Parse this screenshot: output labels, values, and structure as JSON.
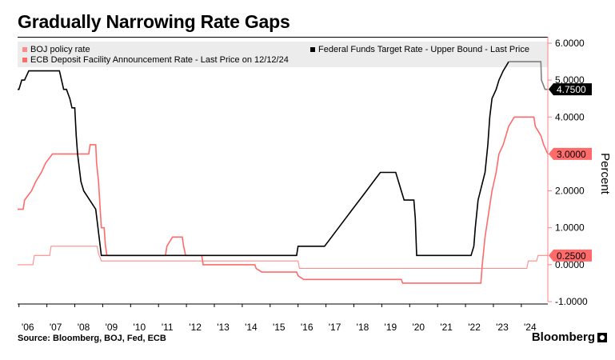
{
  "page": {
    "title": "Gradually Narrowing Rate Gaps",
    "source": "Source: Bloomberg, BOJ, Fed, ECB",
    "brand": "Bloomberg"
  },
  "chart_data": {
    "type": "line",
    "title": "Gradually Narrowing Rate Gaps",
    "ylabel": "Percent",
    "ylim": [
      -1.0,
      6.0
    ],
    "y_ticks": [
      "6.0000",
      "5.0000",
      "4.0000",
      "3.0000",
      "2.0000",
      "1.0000",
      "0.0000",
      "-1.0000"
    ],
    "y_tick_values": [
      6,
      5,
      4,
      3,
      2,
      1,
      0,
      -1
    ],
    "x_tick_labels": [
      "'06",
      "'07",
      "'08",
      "'09",
      "'10",
      "'11",
      "'12",
      "'13",
      "'14",
      "'15",
      "'16",
      "'17",
      "'18",
      "'19",
      "'20",
      "'21",
      "'22",
      "'23",
      "'24"
    ],
    "x_tick_years": [
      2006,
      2007,
      2008,
      2009,
      2010,
      2011,
      2012,
      2013,
      2014,
      2015,
      2016,
      2017,
      2018,
      2019,
      2020,
      2021,
      2022,
      2023,
      2024
    ],
    "xlim": [
      2005.95,
      2024.95
    ],
    "legend": {
      "boj": "BOJ policy rate",
      "ecb": "ECB Deposit Facility Announcement Rate - Last Price on 12/12/24",
      "fed": "Federal Funds Target Rate - Upper Bound - Last Price"
    },
    "last_labels": [
      {
        "series": "fed",
        "text": "4.7500",
        "value": 4.75
      },
      {
        "series": "ecb",
        "text": "3.0000",
        "value": 3.0
      },
      {
        "series": "boj",
        "text": "0.2500",
        "value": 0.25
      }
    ],
    "colors": {
      "fed": "#000000",
      "fed_recent": "#7f7f7f",
      "ecb": "#ff6b6b",
      "boj": "#ff8c8c",
      "axis_right": "#ff8080",
      "label_fed_bg": "#000000",
      "label_ecb_bg": "#ff6b6b",
      "label_boj_bg": "#ff6b6b"
    },
    "series": [
      {
        "name": "fed",
        "values": [
          [
            2005.95,
            4.75
          ],
          [
            2006.0,
            4.75
          ],
          [
            2006.1,
            5.0
          ],
          [
            2006.2,
            5.0
          ],
          [
            2006.35,
            5.25
          ],
          [
            2007.45,
            5.25
          ],
          [
            2007.6,
            4.75
          ],
          [
            2007.7,
            4.75
          ],
          [
            2007.82,
            4.5
          ],
          [
            2007.9,
            4.25
          ],
          [
            2008.0,
            4.25
          ],
          [
            2008.05,
            3.5
          ],
          [
            2008.1,
            3.0
          ],
          [
            2008.22,
            2.25
          ],
          [
            2008.32,
            2.0
          ],
          [
            2008.75,
            1.5
          ],
          [
            2008.83,
            1.0
          ],
          [
            2008.95,
            0.25
          ],
          [
            2015.95,
            0.25
          ],
          [
            2016.0,
            0.5
          ],
          [
            2016.95,
            0.5
          ],
          [
            2017.2,
            0.75
          ],
          [
            2017.45,
            1.0
          ],
          [
            2017.7,
            1.25
          ],
          [
            2017.95,
            1.5
          ],
          [
            2018.2,
            1.75
          ],
          [
            2018.45,
            2.0
          ],
          [
            2018.7,
            2.25
          ],
          [
            2018.95,
            2.5
          ],
          [
            2019.5,
            2.5
          ],
          [
            2019.6,
            2.25
          ],
          [
            2019.7,
            2.0
          ],
          [
            2019.8,
            1.75
          ],
          [
            2020.15,
            1.75
          ],
          [
            2020.2,
            1.25
          ],
          [
            2020.25,
            0.25
          ],
          [
            2022.2,
            0.25
          ],
          [
            2022.3,
            0.5
          ],
          [
            2022.35,
            1.0
          ],
          [
            2022.45,
            1.75
          ],
          [
            2022.7,
            2.5
          ],
          [
            2022.8,
            3.25
          ],
          [
            2022.87,
            4.0
          ],
          [
            2022.95,
            4.5
          ],
          [
            2023.1,
            4.75
          ],
          [
            2023.2,
            5.0
          ],
          [
            2023.35,
            5.25
          ],
          [
            2023.55,
            5.5
          ]
        ]
      },
      {
        "name": "fed_recent",
        "values": [
          [
            2023.55,
            5.5
          ],
          [
            2024.7,
            5.5
          ],
          [
            2024.72,
            5.0
          ],
          [
            2024.85,
            4.75
          ],
          [
            2024.95,
            4.75
          ]
        ]
      },
      {
        "name": "ecb",
        "values": [
          [
            2005.95,
            1.5
          ],
          [
            2006.15,
            1.5
          ],
          [
            2006.2,
            1.75
          ],
          [
            2006.45,
            2.0
          ],
          [
            2006.6,
            2.25
          ],
          [
            2006.8,
            2.5
          ],
          [
            2006.95,
            2.75
          ],
          [
            2007.2,
            3.0
          ],
          [
            2008.5,
            3.0
          ],
          [
            2008.55,
            3.25
          ],
          [
            2008.75,
            3.25
          ],
          [
            2008.78,
            2.75
          ],
          [
            2008.85,
            2.25
          ],
          [
            2008.95,
            1.0
          ],
          [
            2009.05,
            1.0
          ],
          [
            2009.1,
            0.5
          ],
          [
            2009.15,
            0.25
          ],
          [
            2011.25,
            0.25
          ],
          [
            2011.3,
            0.5
          ],
          [
            2011.5,
            0.75
          ],
          [
            2011.85,
            0.75
          ],
          [
            2011.9,
            0.5
          ],
          [
            2011.97,
            0.25
          ],
          [
            2012.55,
            0.25
          ],
          [
            2012.6,
            0.0
          ],
          [
            2014.45,
            0.0
          ],
          [
            2014.5,
            -0.1
          ],
          [
            2014.7,
            -0.2
          ],
          [
            2015.95,
            -0.2
          ],
          [
            2016.0,
            -0.3
          ],
          [
            2016.2,
            -0.4
          ],
          [
            2019.7,
            -0.4
          ],
          [
            2019.75,
            -0.5
          ],
          [
            2022.55,
            -0.5
          ],
          [
            2022.6,
            0.0
          ],
          [
            2022.7,
            0.75
          ],
          [
            2022.85,
            1.5
          ],
          [
            2022.95,
            2.0
          ],
          [
            2023.1,
            2.5
          ],
          [
            2023.2,
            3.0
          ],
          [
            2023.35,
            3.25
          ],
          [
            2023.45,
            3.5
          ],
          [
            2023.55,
            3.75
          ],
          [
            2023.75,
            4.0
          ],
          [
            2024.45,
            4.0
          ],
          [
            2024.5,
            3.75
          ],
          [
            2024.7,
            3.5
          ],
          [
            2024.8,
            3.25
          ],
          [
            2024.95,
            3.0
          ]
        ]
      },
      {
        "name": "boj",
        "values": [
          [
            2005.95,
            0.0
          ],
          [
            2006.5,
            0.0
          ],
          [
            2006.55,
            0.25
          ],
          [
            2007.1,
            0.25
          ],
          [
            2007.15,
            0.5
          ],
          [
            2008.8,
            0.5
          ],
          [
            2008.85,
            0.3
          ],
          [
            2008.95,
            0.1
          ],
          [
            2016.0,
            0.1
          ],
          [
            2016.05,
            -0.1
          ],
          [
            2024.2,
            -0.1
          ],
          [
            2024.25,
            0.1
          ],
          [
            2024.55,
            0.1
          ],
          [
            2024.6,
            0.25
          ],
          [
            2024.95,
            0.25
          ]
        ]
      }
    ]
  }
}
